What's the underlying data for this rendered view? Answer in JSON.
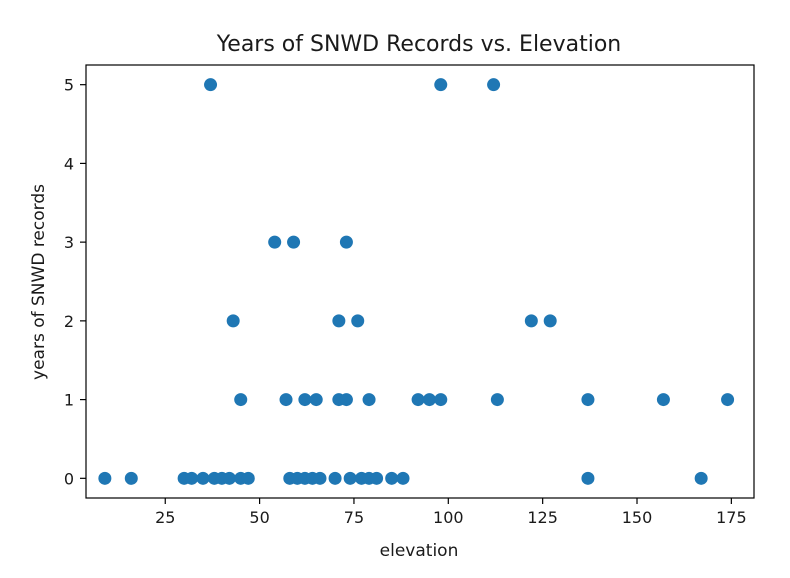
{
  "chart_data": {
    "type": "scatter",
    "title": "Years of SNWD Records vs. Elevation",
    "xlabel": "elevation",
    "ylabel": "years of SNWD records",
    "xlim": [
      4,
      181
    ],
    "ylim": [
      -0.25,
      5.25
    ],
    "xticks": [
      25,
      50,
      75,
      100,
      125,
      150,
      175
    ],
    "yticks": [
      0,
      1,
      2,
      3,
      4,
      5
    ],
    "grid": false,
    "color": "#1f77b4",
    "points": [
      {
        "x": 9,
        "y": 0
      },
      {
        "x": 16,
        "y": 0
      },
      {
        "x": 30,
        "y": 0
      },
      {
        "x": 32,
        "y": 0
      },
      {
        "x": 35,
        "y": 0
      },
      {
        "x": 38,
        "y": 0
      },
      {
        "x": 40,
        "y": 0
      },
      {
        "x": 42,
        "y": 0
      },
      {
        "x": 45,
        "y": 0
      },
      {
        "x": 47,
        "y": 0
      },
      {
        "x": 58,
        "y": 0
      },
      {
        "x": 60,
        "y": 0
      },
      {
        "x": 62,
        "y": 0
      },
      {
        "x": 64,
        "y": 0
      },
      {
        "x": 66,
        "y": 0
      },
      {
        "x": 70,
        "y": 0
      },
      {
        "x": 74,
        "y": 0
      },
      {
        "x": 77,
        "y": 0
      },
      {
        "x": 79,
        "y": 0
      },
      {
        "x": 81,
        "y": 0
      },
      {
        "x": 85,
        "y": 0
      },
      {
        "x": 88,
        "y": 0
      },
      {
        "x": 137,
        "y": 0
      },
      {
        "x": 167,
        "y": 0
      },
      {
        "x": 45,
        "y": 1
      },
      {
        "x": 57,
        "y": 1
      },
      {
        "x": 62,
        "y": 1
      },
      {
        "x": 65,
        "y": 1
      },
      {
        "x": 71,
        "y": 1
      },
      {
        "x": 73,
        "y": 1
      },
      {
        "x": 79,
        "y": 1
      },
      {
        "x": 92,
        "y": 1
      },
      {
        "x": 95,
        "y": 1
      },
      {
        "x": 98,
        "y": 1
      },
      {
        "x": 113,
        "y": 1
      },
      {
        "x": 137,
        "y": 1
      },
      {
        "x": 157,
        "y": 1
      },
      {
        "x": 174,
        "y": 1
      },
      {
        "x": 43,
        "y": 2
      },
      {
        "x": 71,
        "y": 2
      },
      {
        "x": 76,
        "y": 2
      },
      {
        "x": 122,
        "y": 2
      },
      {
        "x": 127,
        "y": 2
      },
      {
        "x": 54,
        "y": 3
      },
      {
        "x": 59,
        "y": 3
      },
      {
        "x": 73,
        "y": 3
      },
      {
        "x": 37,
        "y": 5
      },
      {
        "x": 98,
        "y": 5
      },
      {
        "x": 112,
        "y": 5
      }
    ]
  }
}
